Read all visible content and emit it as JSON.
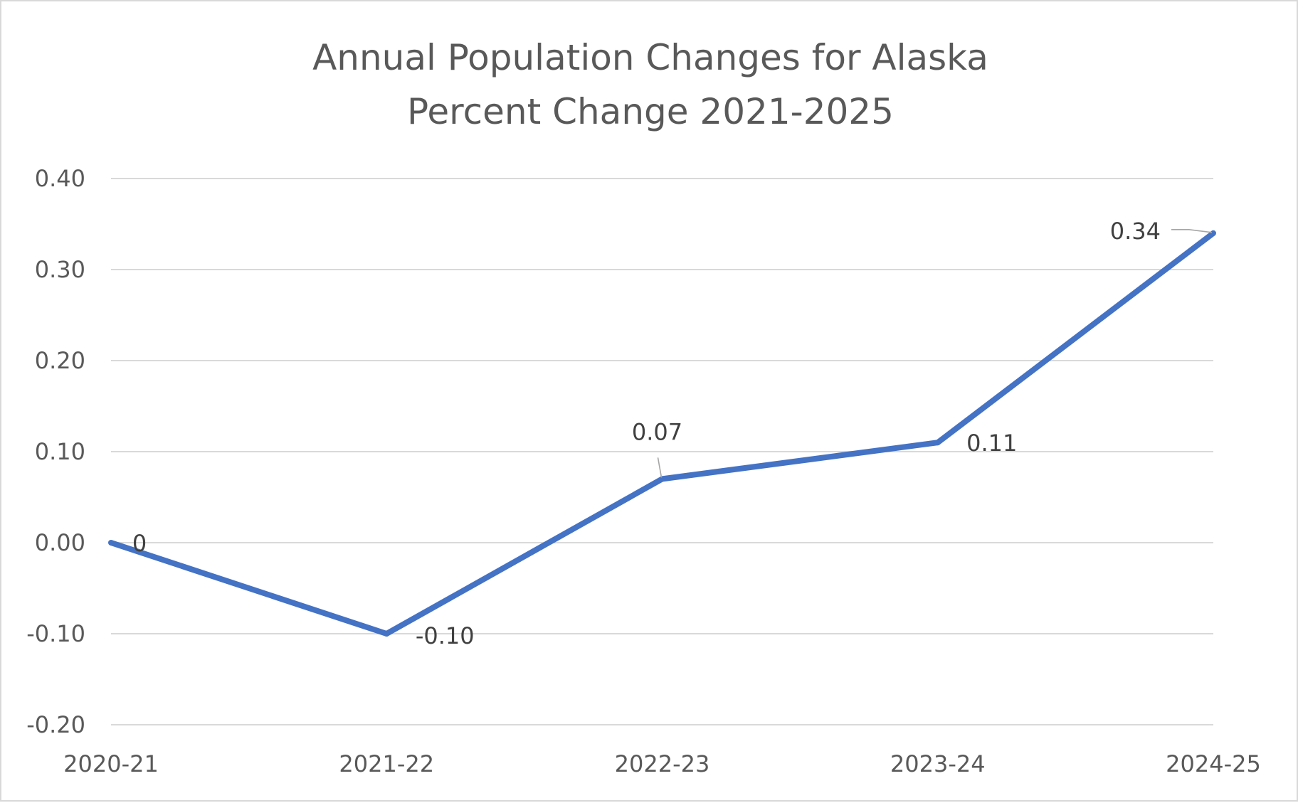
{
  "chart_data": {
    "type": "line",
    "title": [
      "Annual Population Changes for Alaska",
      "Percent Change 2021-2025"
    ],
    "categories": [
      "2020-21",
      "2021-22",
      "2022-23",
      "2023-24",
      "2024-25"
    ],
    "series": [
      {
        "values": [
          0,
          -0.1,
          0.07,
          0.11,
          0.34
        ],
        "data_labels": [
          "0",
          "-0.10",
          "0.07",
          "0.11",
          "0.34"
        ],
        "color": "#4472c4"
      }
    ],
    "y_ticks": [
      "0.40",
      "0.30",
      "0.20",
      "0.10",
      "0.00",
      "-0.10",
      "-0.20"
    ],
    "ylim": [
      -0.2,
      0.4
    ],
    "grid": true,
    "legend": "none"
  }
}
